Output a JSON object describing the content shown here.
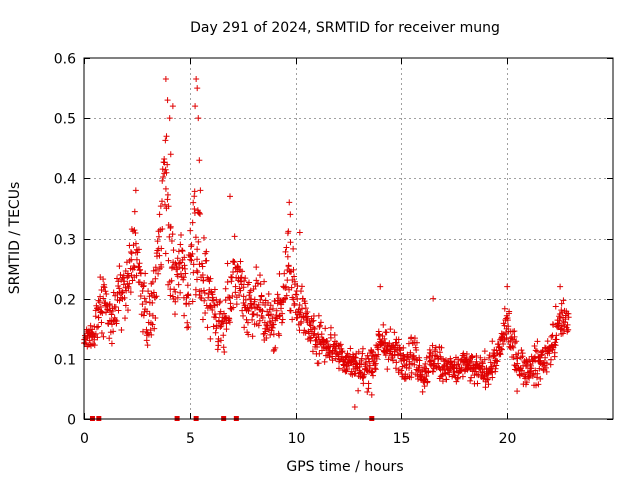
{
  "chart_data": {
    "type": "scatter",
    "title": "Day 291 of 2024, SRMTID for receiver mung",
    "xlabel": "GPS time / hours",
    "ylabel": "SRMTID / TECUs",
    "xlim": [
      0,
      25
    ],
    "ylim": [
      0,
      0.6
    ],
    "xticks": [
      0,
      5,
      10,
      15,
      20
    ],
    "xtick_labels": [
      "0",
      "5",
      "10",
      "15",
      "20"
    ],
    "yticks": [
      0,
      0.1,
      0.2,
      0.3,
      0.4,
      0.5,
      0.6
    ],
    "ytick_labels": [
      "0",
      "0.1",
      "0.2",
      "0.3",
      "0.4",
      "0.5",
      "0.6"
    ],
    "grid": true,
    "marker": "plus",
    "color": "#e00000",
    "series": [
      {
        "name": "SRMTID",
        "profile": [
          [
            0.0,
            0.13,
            0.02
          ],
          [
            0.5,
            0.15,
            0.04
          ],
          [
            0.9,
            0.2,
            0.06
          ],
          [
            1.3,
            0.16,
            0.04
          ],
          [
            1.7,
            0.2,
            0.06
          ],
          [
            2.1,
            0.22,
            0.07
          ],
          [
            2.4,
            0.3,
            0.07
          ],
          [
            2.7,
            0.22,
            0.05
          ],
          [
            3.0,
            0.16,
            0.05
          ],
          [
            3.3,
            0.2,
            0.07
          ],
          [
            3.5,
            0.27,
            0.09
          ],
          [
            3.8,
            0.42,
            0.12
          ],
          [
            4.0,
            0.3,
            0.1
          ],
          [
            4.3,
            0.22,
            0.08
          ],
          [
            4.6,
            0.26,
            0.08
          ],
          [
            4.9,
            0.2,
            0.07
          ],
          [
            5.2,
            0.33,
            0.14
          ],
          [
            5.5,
            0.24,
            0.08
          ],
          [
            5.8,
            0.2,
            0.07
          ],
          [
            6.2,
            0.18,
            0.06
          ],
          [
            6.6,
            0.15,
            0.06
          ],
          [
            6.9,
            0.22,
            0.08
          ],
          [
            7.3,
            0.24,
            0.06
          ],
          [
            7.7,
            0.19,
            0.07
          ],
          [
            8.1,
            0.2,
            0.07
          ],
          [
            8.5,
            0.18,
            0.07
          ],
          [
            8.9,
            0.15,
            0.06
          ],
          [
            9.2,
            0.18,
            0.06
          ],
          [
            9.6,
            0.25,
            0.09
          ],
          [
            10.0,
            0.21,
            0.06
          ],
          [
            10.4,
            0.17,
            0.05
          ],
          [
            10.8,
            0.14,
            0.04
          ],
          [
            11.3,
            0.13,
            0.04
          ],
          [
            11.8,
            0.12,
            0.04
          ],
          [
            12.3,
            0.1,
            0.03
          ],
          [
            12.8,
            0.09,
            0.03
          ],
          [
            13.2,
            0.08,
            0.04
          ],
          [
            13.7,
            0.1,
            0.04
          ],
          [
            14.1,
            0.13,
            0.04
          ],
          [
            14.6,
            0.11,
            0.04
          ],
          [
            15.1,
            0.1,
            0.04
          ],
          [
            15.6,
            0.11,
            0.04
          ],
          [
            16.0,
            0.07,
            0.03
          ],
          [
            16.5,
            0.1,
            0.04
          ],
          [
            17.0,
            0.09,
            0.03
          ],
          [
            17.5,
            0.08,
            0.03
          ],
          [
            18.0,
            0.09,
            0.03
          ],
          [
            18.5,
            0.08,
            0.03
          ],
          [
            19.0,
            0.08,
            0.03
          ],
          [
            19.5,
            0.1,
            0.03
          ],
          [
            20.0,
            0.16,
            0.04
          ],
          [
            20.4,
            0.1,
            0.04
          ],
          [
            20.9,
            0.08,
            0.03
          ],
          [
            21.4,
            0.09,
            0.04
          ],
          [
            21.8,
            0.1,
            0.03
          ],
          [
            22.2,
            0.13,
            0.04
          ],
          [
            22.6,
            0.17,
            0.04
          ],
          [
            22.9,
            0.16,
            0.03
          ]
        ],
        "outliers": [
          [
            3.87,
            0.565
          ],
          [
            3.95,
            0.53
          ],
          [
            4.05,
            0.5
          ],
          [
            4.1,
            0.44
          ],
          [
            3.9,
            0.47
          ],
          [
            4.2,
            0.52
          ],
          [
            5.3,
            0.565
          ],
          [
            5.35,
            0.55
          ],
          [
            5.25,
            0.52
          ],
          [
            5.4,
            0.5
          ],
          [
            5.45,
            0.43
          ],
          [
            5.5,
            0.38
          ],
          [
            9.7,
            0.36
          ],
          [
            9.75,
            0.34
          ],
          [
            10.2,
            0.31
          ],
          [
            2.45,
            0.38
          ],
          [
            6.9,
            0.37
          ],
          [
            14.0,
            0.22
          ],
          [
            16.5,
            0.2
          ],
          [
            20.0,
            0.22
          ],
          [
            22.5,
            0.22
          ],
          [
            12.8,
            0.02
          ],
          [
            13.6,
            0.04
          ]
        ]
      }
    ],
    "zero_markers_x": [
      0.4,
      0.7,
      4.4,
      5.3,
      6.6,
      7.2,
      13.6
    ]
  }
}
